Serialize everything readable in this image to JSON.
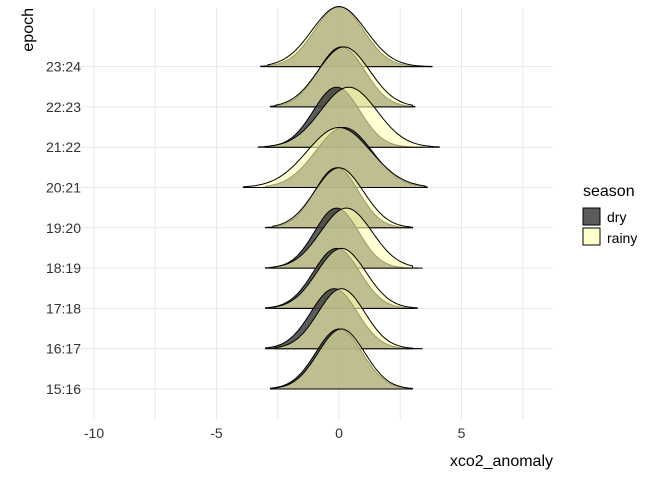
{
  "chart_data": {
    "type": "ridgeline",
    "xlabel": "xco2_anomaly",
    "ylabel": "epoch",
    "xlim": [
      -10,
      8.5
    ],
    "x_ticks": [
      -10,
      -5,
      0,
      5
    ],
    "x_tick_labels": [
      "-10",
      "-5",
      "0",
      "5"
    ],
    "grid": true,
    "legend": {
      "title": "season",
      "position": "right",
      "entries": [
        {
          "label": "dry",
          "color": "#3f3f3f",
          "alpha": 0.85
        },
        {
          "label": "rainy",
          "color": "#ffffb2",
          "alpha": 0.6
        }
      ]
    },
    "categories": [
      "15:16",
      "16:17",
      "17:18",
      "18:19",
      "19:20",
      "20:21",
      "21:22",
      "22:23",
      "23:24"
    ],
    "series": [
      {
        "name": "dry",
        "ranges": [
          [
            -2.8,
            3.0
          ],
          [
            -3.0,
            3.4
          ],
          [
            -3.0,
            3.1
          ],
          [
            -3.0,
            3.4
          ],
          [
            -3.0,
            3.0
          ],
          [
            -3.0,
            3.6
          ],
          [
            -3.3,
            3.5
          ],
          [
            -2.8,
            3.1
          ],
          [
            -3.2,
            3.8
          ]
        ],
        "centers": [
          0.0,
          -0.2,
          -0.1,
          -0.1,
          -0.1,
          0.2,
          -0.1,
          0.1,
          0.0
        ],
        "sds": [
          0.95,
          0.95,
          0.95,
          0.9,
          0.9,
          1.15,
          0.95,
          0.95,
          1.0
        ]
      },
      {
        "name": "rainy",
        "ranges": [
          [
            -2.6,
            3.0
          ],
          [
            -2.6,
            3.0
          ],
          [
            -2.6,
            3.2
          ],
          [
            -2.7,
            3.0
          ],
          [
            -2.7,
            3.0
          ],
          [
            -3.9,
            3.5
          ],
          [
            -3.0,
            4.1
          ],
          [
            -2.6,
            3.0
          ],
          [
            -2.9,
            3.8
          ]
        ],
        "centers": [
          0.1,
          0.1,
          0.1,
          0.3,
          0.0,
          0.0,
          0.4,
          0.2,
          0.0
        ],
        "sds": [
          0.95,
          0.95,
          1.0,
          1.05,
          1.0,
          1.3,
          1.15,
          1.05,
          1.1
        ]
      }
    ]
  }
}
